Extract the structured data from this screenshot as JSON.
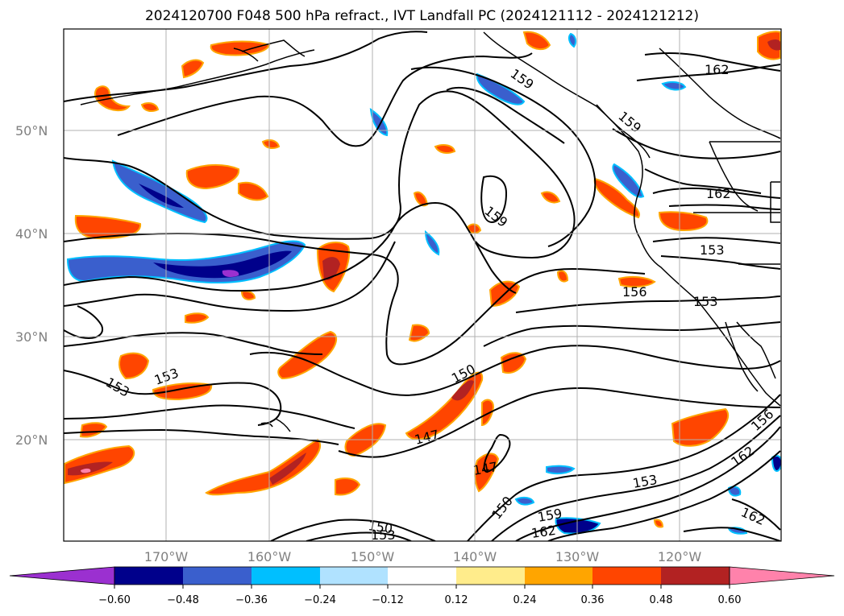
{
  "title": "2024120700 F048 500 hPa refract., IVT Landfall PC (2024121112 - 2024121212)",
  "lat_labels": [
    "50°N",
    "40°N",
    "30°N",
    "20°N"
  ],
  "lon_labels": [
    "170°W",
    "160°W",
    "150°W",
    "140°W",
    "130°W",
    "120°W"
  ],
  "colorbar": {
    "colors": [
      "#9b30d0",
      "#00008b",
      "#3a5fcd",
      "#00bfff",
      "#b0e2ff",
      "#ffffff",
      "#ffec8b",
      "#ffa500",
      "#ff4500",
      "#b22222",
      "#ff82ab"
    ],
    "tick_labels": [
      "−0.60",
      "−0.48",
      "−0.36",
      "−0.24",
      "−0.12",
      "0.12",
      "0.24",
      "0.36",
      "0.48",
      "0.60"
    ]
  },
  "contour_labels": [
    "159",
    "162",
    "159",
    "162",
    "159",
    "153",
    "156",
    "153",
    "153",
    "153",
    "150",
    "147",
    "147",
    "153",
    "162",
    "156",
    "150",
    "159",
    "150",
    "153",
    "162",
    "162"
  ]
}
